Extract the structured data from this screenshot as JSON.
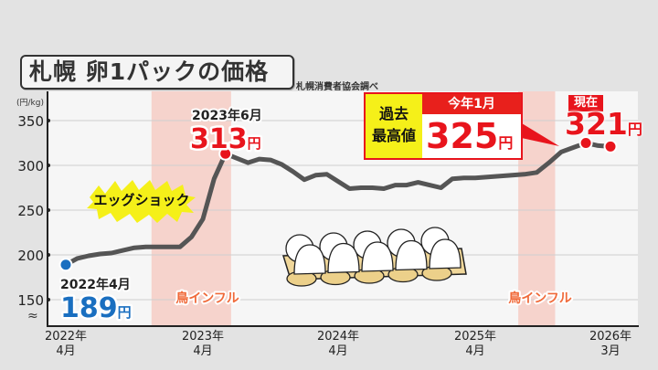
{
  "title": "札幌 卵1パックの価格",
  "source": "札幌消費者協会調べ",
  "colors": {
    "line": "#555555",
    "highlight": "#e8141c",
    "start": "#1a6fc0",
    "band": "#f6d3cc",
    "flu_text": "#f06a3a",
    "burst": "#f5f019"
  },
  "icons": [
    "egg-carton-illustration",
    "starburst-badge"
  ],
  "annotations": {
    "start": {
      "date": "2022年4月",
      "value": "189",
      "unit": "円"
    },
    "jun2023": {
      "date": "2023年6月",
      "value": "313",
      "unit": "円"
    },
    "record": {
      "label": "過去最高値",
      "label_line1": "過去",
      "label_line2": "最高値",
      "date": "今年1月",
      "value": "325",
      "unit": "円"
    },
    "current": {
      "label": "現在",
      "value": "321",
      "unit": "円"
    },
    "egg_shock": "エッグショック",
    "bird_flu_1": "鳥インフル",
    "bird_flu_2": "鳥インフル"
  },
  "chart_data": {
    "type": "line",
    "title": "札幌 卵1パックの価格",
    "ylabel": "(円/kg)",
    "ylim": [
      120,
      370
    ],
    "yticks": [
      150,
      200,
      250,
      300,
      350
    ],
    "axis_break": "≈",
    "grid": true,
    "xticks": [
      {
        "date": "2022-04",
        "line1": "2022年",
        "line2": "4月"
      },
      {
        "date": "2023-04",
        "line1": "2023年",
        "line2": "4月"
      },
      {
        "date": "2024-04",
        "line1": "2024年",
        "line2": "4月"
      },
      {
        "date": "2025-04",
        "line1": "2025年",
        "line2": "4月"
      },
      {
        "date": "2026-03",
        "line1": "2026年",
        "line2": "3月"
      }
    ],
    "shaded_periods": [
      {
        "label": "鳥インフル",
        "from": "2022-12",
        "to": "2023-06"
      },
      {
        "label": "鳥インフル",
        "from": "2025-08",
        "to": "2025-10"
      }
    ],
    "series": [
      {
        "x": [
          "2022-04",
          "2022-05",
          "2022-06",
          "2022-07",
          "2022-08",
          "2022-09",
          "2022-10",
          "2022-11",
          "2022-12",
          "2023-01",
          "2023-02",
          "2023-03",
          "2023-04",
          "2023-05",
          "2023-06",
          "2023-07",
          "2023-08",
          "2023-09",
          "2023-10",
          "2023-11",
          "2023-12",
          "2024-01",
          "2024-02",
          "2024-03",
          "2024-04",
          "2024-05",
          "2024-06",
          "2024-07",
          "2024-08",
          "2024-09",
          "2024-10",
          "2024-11",
          "2024-12",
          "2025-01",
          "2025-02",
          "2025-03",
          "2025-04",
          "2025-05",
          "2025-06",
          "2025-07",
          "2025-08",
          "2025-09",
          "2025-10",
          "2025-11",
          "2025-12",
          "2026-01",
          "2026-02",
          "2026-03"
        ],
        "values": [
          189,
          196,
          199,
          201,
          202,
          205,
          208,
          209,
          209,
          209,
          209,
          220,
          240,
          285,
          313,
          308,
          303,
          307,
          306,
          301,
          293,
          284,
          289,
          290,
          282,
          274,
          275,
          275,
          274,
          278,
          278,
          281,
          278,
          275,
          285,
          286,
          286,
          287,
          288,
          289,
          290,
          292,
          303,
          315,
          320,
          325,
          322,
          321
        ]
      }
    ],
    "highlighted_points": [
      {
        "date": "2022-04",
        "value": 189
      },
      {
        "date": "2023-06",
        "value": 313
      },
      {
        "date": "2026-01",
        "value": 325
      },
      {
        "date": "2026-03",
        "value": 321
      }
    ]
  }
}
